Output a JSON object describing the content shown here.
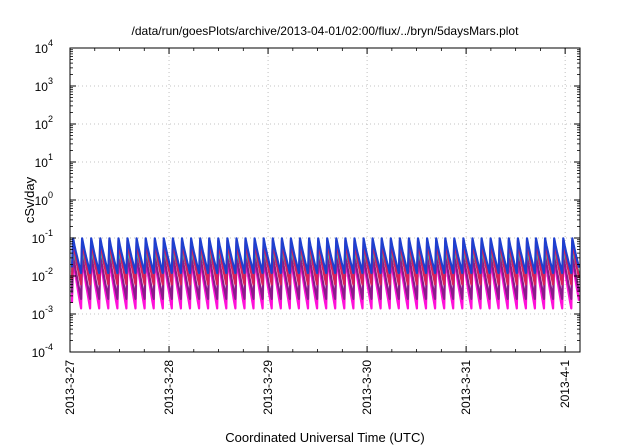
{
  "chart_data": {
    "type": "line",
    "title": "/data/run/goesPlots/archive/2013-04-01/02:00/flux/../bryn/5daysMars.plot",
    "xlabel": "Coordinated Universal Time (UTC)",
    "ylabel": "cSv/day",
    "yscale": "log",
    "ylim": [
      0.0001,
      10000
    ],
    "y_ticks": [
      {
        "base": "10",
        "exp": "-4",
        "value": 0.0001
      },
      {
        "base": "10",
        "exp": "-3",
        "value": 0.001
      },
      {
        "base": "10",
        "exp": "-2",
        "value": 0.01
      },
      {
        "base": "10",
        "exp": "-1",
        "value": 0.1
      },
      {
        "base": "10",
        "exp": "0",
        "value": 1
      },
      {
        "base": "10",
        "exp": "1",
        "value": 10
      },
      {
        "base": "10",
        "exp": "2",
        "value": 100
      },
      {
        "base": "10",
        "exp": "3",
        "value": 1000
      },
      {
        "base": "10",
        "exp": "4",
        "value": 10000
      }
    ],
    "x_ticks": [
      "2013-3-27",
      "2013-3-28",
      "2013-3-29",
      "2013-3-30",
      "2013-3-31",
      "2013-4-1"
    ],
    "xlim_days": [
      0,
      5.15
    ],
    "grid": true,
    "cycle_hours": 2.2,
    "series": [
      {
        "color": "#1e3fcf",
        "peak": 0.098,
        "trough": 0.012
      },
      {
        "color": "#d81e5b",
        "peak": 0.085,
        "trough": 0.006
      },
      {
        "color": "#1cc4b0",
        "peak": 0.05,
        "trough": 0.009
      },
      {
        "color": "#8a1a8a",
        "peak": 0.038,
        "trough": 0.0025
      },
      {
        "color": "#ff10d8",
        "peak": 0.03,
        "trough": 0.0014
      }
    ]
  }
}
